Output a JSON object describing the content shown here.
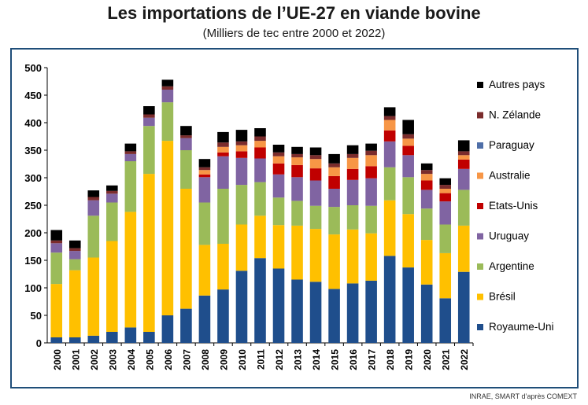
{
  "title": "Les importations de l’UE-27 en viande bovine",
  "subtitle": "(Milliers de tec entre 2000 et 2022)",
  "source": "INRAE, SMART d’après COMEXT",
  "chart_data": {
    "type": "bar",
    "stacked": true,
    "categories": [
      "2000",
      "2001",
      "2002",
      "2003",
      "2004",
      "2005",
      "2006",
      "2007",
      "2008",
      "2009",
      "2010",
      "2011",
      "2012",
      "2013",
      "2014",
      "2015",
      "2016",
      "2017",
      "2018",
      "2019",
      "2020",
      "2021",
      "2022"
    ],
    "ylim": [
      0,
      500
    ],
    "yticks": [
      0,
      50,
      100,
      150,
      200,
      250,
      300,
      350,
      400,
      450,
      500
    ],
    "legend_position": "right",
    "series": [
      {
        "name": "Royaume-Uni",
        "color": "#1f4e8c",
        "values": [
          10,
          10,
          13,
          20,
          28,
          20,
          50,
          62,
          86,
          97,
          131,
          154,
          135,
          115,
          111,
          98,
          108,
          113,
          158,
          137,
          106,
          81,
          129
        ]
      },
      {
        "name": "Brésil",
        "color": "#ffc000",
        "values": [
          97,
          122,
          142,
          165,
          210,
          287,
          317,
          218,
          92,
          83,
          84,
          77,
          79,
          98,
          96,
          99,
          98,
          86,
          101,
          97,
          81,
          82,
          84
        ]
      },
      {
        "name": "Argentine",
        "color": "#9bbb59",
        "values": [
          57,
          20,
          76,
          70,
          92,
          87,
          70,
          70,
          77,
          100,
          72,
          61,
          50,
          45,
          42,
          50,
          44,
          50,
          60,
          67,
          57,
          52,
          65
        ]
      },
      {
        "name": "Uruguay",
        "color": "#8064a2",
        "values": [
          17,
          15,
          28,
          16,
          13,
          15,
          23,
          22,
          46,
          59,
          49,
          43,
          42,
          43,
          46,
          33,
          46,
          50,
          47,
          40,
          34,
          42,
          38
        ]
      },
      {
        "name": "Etats-Unis",
        "color": "#c00000",
        "values": [
          0,
          0,
          0,
          0,
          0,
          0,
          0,
          0,
          5,
          7,
          12,
          20,
          20,
          22,
          22,
          23,
          20,
          22,
          20,
          17,
          17,
          15,
          17
        ]
      },
      {
        "name": "Australie",
        "color": "#f79646",
        "values": [
          0,
          0,
          0,
          0,
          0,
          0,
          0,
          0,
          8,
          10,
          11,
          12,
          13,
          14,
          17,
          16,
          20,
          20,
          19,
          13,
          12,
          8,
          8
        ]
      },
      {
        "name": "Paraguay",
        "color": "#4f6fa8",
        "values": [
          0,
          0,
          0,
          0,
          0,
          0,
          0,
          0,
          0,
          0,
          0,
          0,
          0,
          0,
          0,
          0,
          0,
          0,
          0,
          0,
          0,
          0,
          0
        ]
      },
      {
        "name": "N. Zélande",
        "color": "#7b2c2c",
        "values": [
          5,
          5,
          6,
          5,
          5,
          6,
          6,
          5,
          5,
          8,
          7,
          8,
          7,
          6,
          7,
          7,
          7,
          8,
          7,
          8,
          7,
          7,
          7
        ]
      },
      {
        "name": "Autres pays",
        "color": "#000000",
        "values": [
          19,
          14,
          12,
          10,
          14,
          15,
          12,
          17,
          15,
          19,
          21,
          15,
          14,
          13,
          14,
          17,
          16,
          13,
          16,
          26,
          12,
          12,
          20
        ]
      }
    ]
  }
}
